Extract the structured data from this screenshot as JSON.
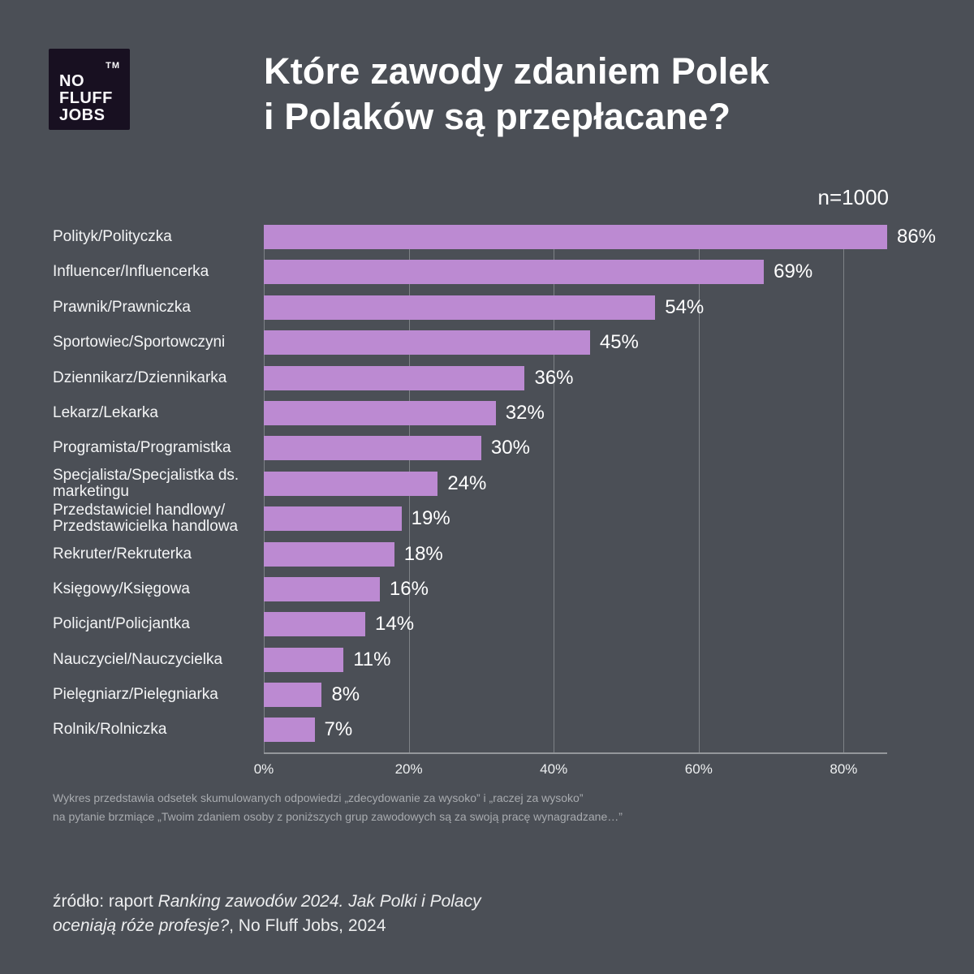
{
  "page": {
    "background_color": "#4b4f56",
    "accent_color": "#bc8ad2"
  },
  "logo": {
    "lines": [
      "NO",
      "FLUFF",
      "JOBS"
    ],
    "tm": "TM",
    "background_color": "#181021"
  },
  "header": {
    "title": "Które zawody zdaniem Polek\ni Polaków są przepłacane?",
    "sample_label": "n=1000"
  },
  "chart_data": {
    "type": "bar",
    "orientation": "horizontal",
    "title": "Które zawody zdaniem Polek i Polaków są przepłacane?",
    "sample_size": "n=1000",
    "categories": [
      "Polityk/Polityczka",
      "Influencer/Influencerka",
      "Prawnik/Prawniczka",
      "Sportowiec/Sportowczyni",
      "Dziennikarz/Dziennikarka",
      "Lekarz/Lekarka",
      "Programista/Programistka",
      "Specjalista/Specjalistka ds.\nmarketingu",
      "Przedstawiciel handlowy/\nPrzedstawicielka handlowa",
      "Rekruter/Rekruterka",
      "Księgowy/Księgowa",
      "Policjant/Policjantka",
      "Nauczyciel/Nauczycielka",
      "Pielęgniarz/Pielęgniarka",
      "Rolnik/Rolniczka"
    ],
    "values": [
      86,
      69,
      54,
      45,
      36,
      32,
      30,
      24,
      19,
      18,
      16,
      14,
      11,
      8,
      7
    ],
    "value_suffix": "%",
    "xlabel": "",
    "ylabel": "",
    "xlim": [
      0,
      86
    ],
    "ticks": [
      0,
      20,
      40,
      60,
      80
    ],
    "tick_labels": [
      "0%",
      "20%",
      "40%",
      "60%",
      "80%"
    ],
    "bar_color": "#bc8ad2",
    "grid": true,
    "legend": false
  },
  "footnote": {
    "line1": "Wykres przedstawia odsetek skumulowanych odpowiedzi „zdecydowanie za wysoko” i „raczej za wysoko”",
    "line2": "na pytanie brzmiące „Twoim zdaniem osoby z poniższych grup zawodowych są za swoją pracę wynagradzane…”"
  },
  "source": {
    "prefix": "źródło: raport ",
    "italic": "Ranking zawodów 2024. Jak Polki i Polacy oceniają róże profesje?",
    "suffix": ", No Fluff Jobs, 2024"
  }
}
